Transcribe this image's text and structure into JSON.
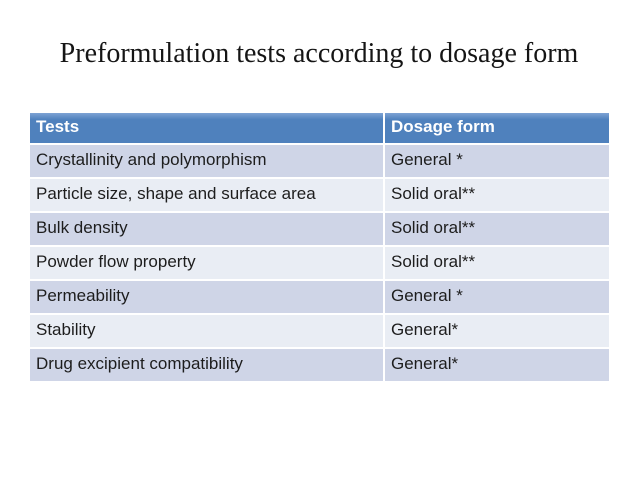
{
  "slide": {
    "title": "Preformulation tests according to dosage form"
  },
  "table": {
    "columns": [
      "Tests",
      "Dosage form"
    ],
    "rows": [
      [
        "Crystallinity and polymorphism",
        "General *"
      ],
      [
        "Particle size, shape and surface area",
        "Solid oral**"
      ],
      [
        "Bulk density",
        "Solid oral**"
      ],
      [
        "Powder flow property",
        "Solid oral**"
      ],
      [
        "Permeability",
        "General *"
      ],
      [
        "Stability",
        "General*"
      ],
      [
        "Drug excipient compatibility",
        "General*"
      ]
    ]
  },
  "colors": {
    "header_bg": "#4f81bd",
    "header_text": "#ffffff",
    "row_band_dark": "#cfd5e7",
    "row_band_light": "#e9edf4",
    "body_text": "#1d1d1d",
    "title_text": "#151515",
    "slide_bg": "#ffffff"
  }
}
